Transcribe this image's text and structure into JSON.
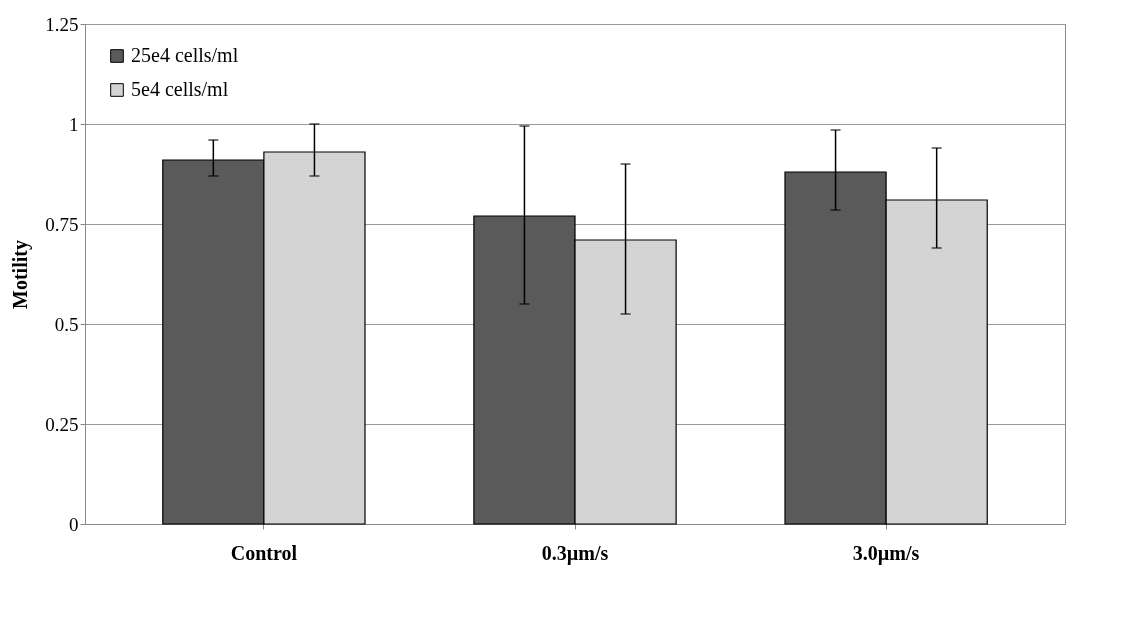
{
  "chart_data": {
    "type": "bar",
    "ylabel": "Motility",
    "categories": [
      "Control",
      "0.3µm/s",
      "3.0µm/s"
    ],
    "series": [
      {
        "name": "25e4 cells/ml",
        "color": "#5a5a5a",
        "values": [
          0.91,
          0.77,
          0.88
        ],
        "errors": [
          [
            0.87,
            0.96
          ],
          [
            0.55,
            0.995
          ],
          [
            0.785,
            0.985
          ]
        ]
      },
      {
        "name": "5e4 cells/ml",
        "color": "#d4d4d4",
        "values": [
          0.93,
          0.71,
          0.81
        ],
        "errors": [
          [
            0.87,
            1.0
          ],
          [
            0.525,
            0.9
          ],
          [
            0.69,
            0.94
          ]
        ]
      }
    ],
    "ylim": [
      0,
      1.25
    ],
    "yticks": [
      0,
      0.25,
      0.5,
      0.75,
      1,
      1.25
    ],
    "grid": "y",
    "legend": "top left"
  }
}
